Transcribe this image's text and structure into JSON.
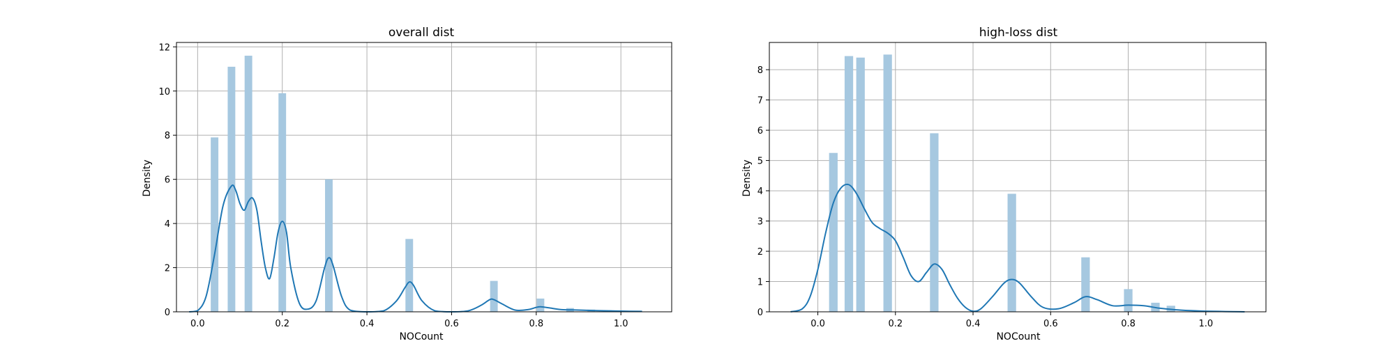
{
  "chart_data": [
    {
      "type": "bar",
      "title": "overall dist",
      "xlabel": "NOCount",
      "ylabel": "Density",
      "xlim": [
        -0.05,
        1.12
      ],
      "ylim": [
        0,
        12.2
      ],
      "xticks": [
        0.0,
        0.2,
        0.4,
        0.6,
        0.8,
        1.0
      ],
      "yticks": [
        0,
        2,
        4,
        6,
        8,
        10,
        12
      ],
      "grid": true,
      "bar_width": 0.018,
      "series": [
        {
          "type": "histogram",
          "x": [
            0.04,
            0.08,
            0.12,
            0.2,
            0.31,
            0.5,
            0.7,
            0.81,
            0.88,
            0.93,
            0.97,
            1.01,
            1.04
          ],
          "values": [
            7.9,
            11.1,
            11.6,
            9.9,
            6.0,
            3.3,
            1.4,
            0.6,
            0.17,
            0.1,
            0.07,
            0.05,
            0.03
          ]
        },
        {
          "type": "kde",
          "x": [
            -0.02,
            0.0,
            0.02,
            0.04,
            0.06,
            0.08,
            0.09,
            0.1,
            0.11,
            0.12,
            0.13,
            0.14,
            0.15,
            0.16,
            0.17,
            0.18,
            0.19,
            0.2,
            0.21,
            0.22,
            0.24,
            0.26,
            0.28,
            0.3,
            0.31,
            0.32,
            0.34,
            0.36,
            0.4,
            0.44,
            0.47,
            0.49,
            0.5,
            0.51,
            0.53,
            0.56,
            0.6,
            0.64,
            0.67,
            0.69,
            0.7,
            0.72,
            0.75,
            0.78,
            0.8,
            0.81,
            0.83,
            0.86,
            0.9,
            0.95,
            1.0,
            1.05
          ],
          "values": [
            0.0,
            0.05,
            0.7,
            2.6,
            4.8,
            5.7,
            5.5,
            4.9,
            4.6,
            5.0,
            5.15,
            4.6,
            3.2,
            2.0,
            1.5,
            2.4,
            3.6,
            4.1,
            3.6,
            2.0,
            0.4,
            0.12,
            0.5,
            2.0,
            2.45,
            2.1,
            0.7,
            0.08,
            0.0,
            0.05,
            0.5,
            1.1,
            1.35,
            1.2,
            0.5,
            0.05,
            0.0,
            0.05,
            0.3,
            0.55,
            0.55,
            0.35,
            0.08,
            0.1,
            0.2,
            0.23,
            0.18,
            0.1,
            0.08,
            0.05,
            0.03,
            0.02
          ]
        }
      ]
    },
    {
      "type": "bar",
      "title": "high-loss dist",
      "xlabel": "NOCount",
      "ylabel": "Density",
      "xlim": [
        -0.125,
        1.155
      ],
      "ylim": [
        0,
        8.9
      ],
      "xticks": [
        0.0,
        0.2,
        0.4,
        0.6,
        0.8,
        1.0
      ],
      "yticks": [
        0,
        1,
        2,
        3,
        4,
        5,
        6,
        7,
        8
      ],
      "grid": true,
      "bar_width": 0.022,
      "series": [
        {
          "type": "histogram",
          "x": [
            0.04,
            0.08,
            0.11,
            0.18,
            0.3,
            0.5,
            0.69,
            0.8,
            0.87,
            0.91
          ],
          "values": [
            5.25,
            8.45,
            8.4,
            8.5,
            5.9,
            3.9,
            1.8,
            0.75,
            0.3,
            0.2
          ]
        },
        {
          "type": "kde",
          "x": [
            -0.07,
            -0.04,
            -0.02,
            0.0,
            0.02,
            0.04,
            0.06,
            0.08,
            0.1,
            0.12,
            0.14,
            0.16,
            0.18,
            0.2,
            0.22,
            0.24,
            0.26,
            0.28,
            0.3,
            0.32,
            0.34,
            0.36,
            0.38,
            0.4,
            0.42,
            0.45,
            0.48,
            0.5,
            0.52,
            0.55,
            0.58,
            0.62,
            0.66,
            0.69,
            0.72,
            0.76,
            0.8,
            0.84,
            0.88,
            0.92,
            0.96,
            1.0,
            1.05,
            1.1
          ],
          "values": [
            0.0,
            0.1,
            0.5,
            1.4,
            2.6,
            3.6,
            4.1,
            4.2,
            3.9,
            3.4,
            2.95,
            2.75,
            2.6,
            2.35,
            1.8,
            1.2,
            1.0,
            1.3,
            1.58,
            1.4,
            0.9,
            0.45,
            0.15,
            0.02,
            0.1,
            0.5,
            0.95,
            1.07,
            0.95,
            0.5,
            0.15,
            0.1,
            0.3,
            0.5,
            0.4,
            0.2,
            0.22,
            0.2,
            0.12,
            0.07,
            0.04,
            0.02,
            0.01,
            0.0
          ]
        }
      ]
    }
  ]
}
